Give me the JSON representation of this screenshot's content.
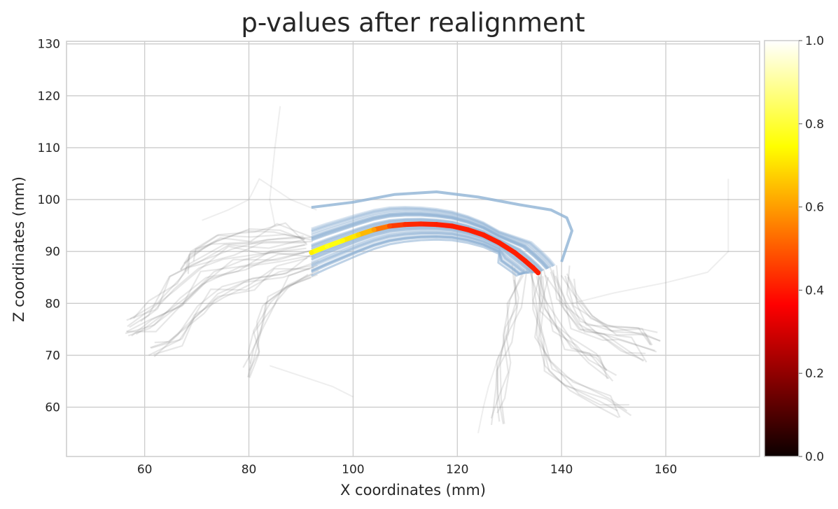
{
  "chart_data": {
    "type": "line",
    "title": "p-values after realignment",
    "xlabel": "X coordinates (mm)",
    "ylabel": "Z coordinates (mm)",
    "xlim": [
      45,
      178
    ],
    "ylim": [
      50.5,
      130.5
    ],
    "xticks": [
      60,
      80,
      100,
      120,
      140,
      160
    ],
    "yticks": [
      60,
      70,
      80,
      90,
      100,
      110,
      120,
      130
    ],
    "grid": true,
    "colorbar": {
      "colormap": "hot",
      "range": [
        0.0,
        1.0
      ],
      "ticks": [
        "0.0",
        "0.2",
        "0.4",
        "0.6",
        "0.8",
        "1.0"
      ]
    },
    "colors": {
      "background_streamlines": "#7a7a7a",
      "aligned_bundle": "#8fb3d4",
      "grid": "#cccccc"
    },
    "series": [
      {
        "x": [
          92,
          95,
          98,
          101,
          104,
          107,
          110,
          113,
          116,
          119,
          122,
          125,
          128,
          131,
          133,
          134.5,
          135.5
        ],
        "y": [
          89.8,
          91.0,
          92.1,
          93.2,
          94.2,
          94.9,
          95.2,
          95.3,
          95.2,
          94.9,
          94.2,
          93.2,
          91.7,
          89.8,
          88.2,
          86.9,
          85.9
        ],
        "p_values": [
          0.72,
          0.78,
          0.74,
          0.68,
          0.6,
          0.48,
          0.43,
          0.42,
          0.41,
          0.41,
          0.41,
          0.41,
          0.41,
          0.41,
          0.41,
          0.41,
          0.41
        ]
      }
    ]
  }
}
